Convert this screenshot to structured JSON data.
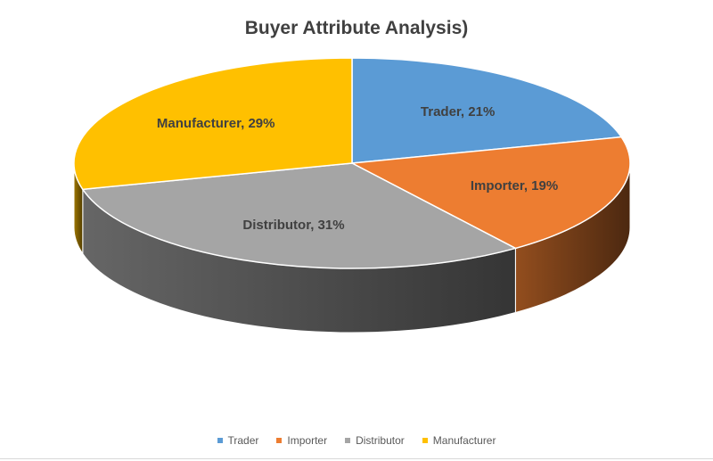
{
  "chart_data": {
    "type": "pie",
    "title": "Buyer Attribute  Analysis)",
    "slices": [
      {
        "label": "Trader",
        "value": 21,
        "value_label": "Trader, 21%",
        "color": "#5B9BD5"
      },
      {
        "label": "Importer",
        "value": 19,
        "value_label": "Importer, 19%",
        "color": "#ED7D31"
      },
      {
        "label": "Distributor",
        "value": 31,
        "value_label": "Distributor, 31%",
        "color": "#A5A5A5"
      },
      {
        "label": "Manufacturer",
        "value": 29,
        "value_label": "Manufacturer, 29%",
        "color": "#FFC000"
      }
    ],
    "legend_position": "bottom",
    "style": "3d"
  }
}
